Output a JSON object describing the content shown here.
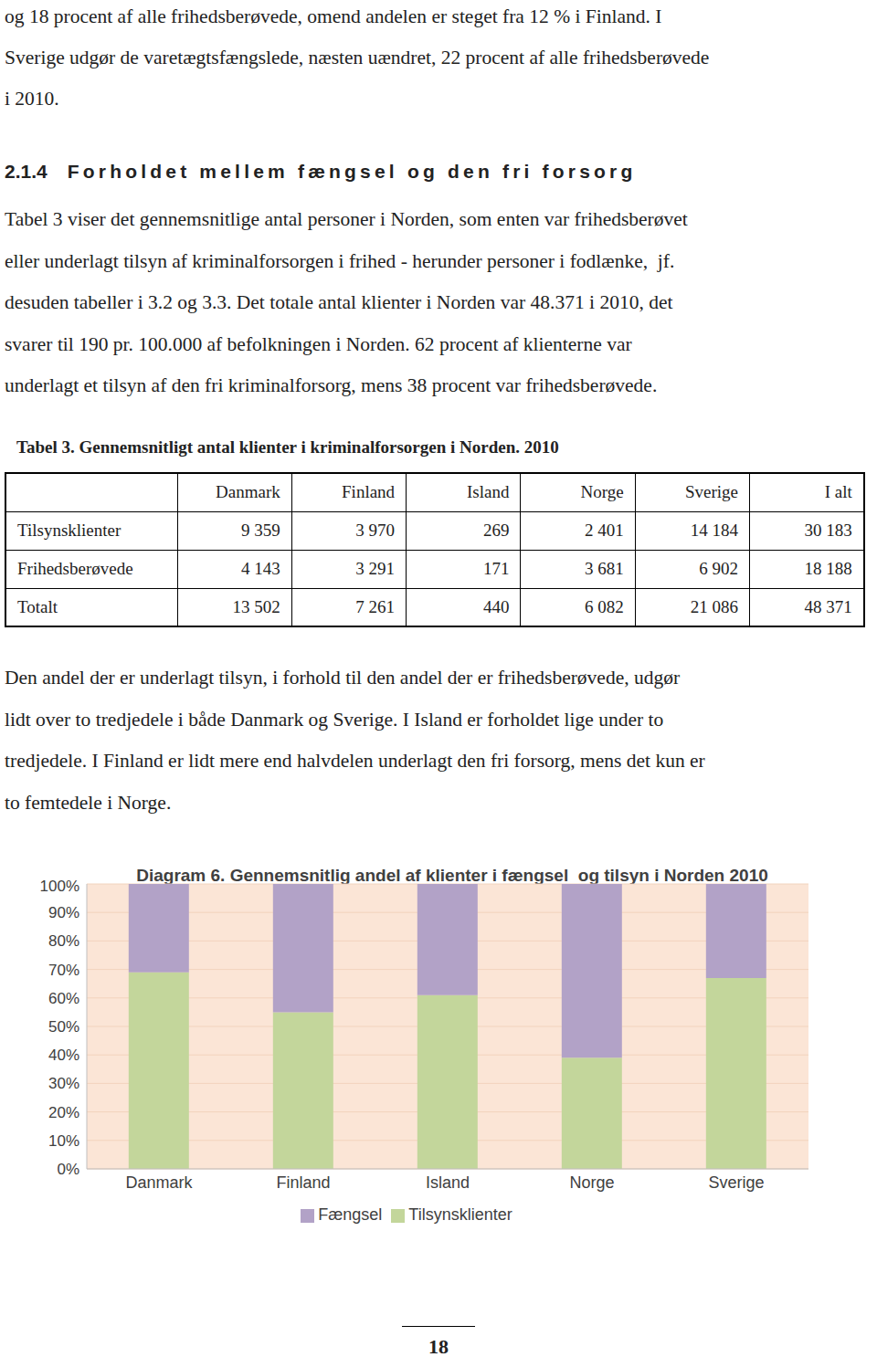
{
  "intro_lines": [
    "og 18 procent af alle frihedsberøvede, omend andelen er steget fra 12 % i Finland. I",
    "Sverige udgør de varetægtsfængslede, næsten uændret, 22 procent af alle frihedsberøvede",
    "i 2010."
  ],
  "heading": {
    "number": "2.1.4",
    "title": "Forholdet mellem fængsel og den fri forsorg"
  },
  "paragraph1_lines": [
    "Tabel 3 viser det gennemsnitlige antal personer i Norden, som enten var frihedsberøvet",
    "eller underlagt tilsyn af kriminalforsorgen i frihed - herunder personer i fodlænke,  jf.",
    "desuden tabeller i 3.2 og 3.3. Det totale antal klienter i Norden var 48.371 i 2010, det",
    "svarer til 190 pr. 100.000 af befolkningen i Norden. 62 procent af klienterne var",
    "underlagt et tilsyn af den fri kriminalforsorg, mens 38 procent var frihedsberøvede."
  ],
  "table": {
    "title": "Tabel 3. Gennemsnitligt antal klienter i kriminalforsorgen i Norden. 2010",
    "columns": [
      "Danmark",
      "Finland",
      "Island",
      "Norge",
      "Sverige",
      "I alt"
    ],
    "rows": [
      {
        "label": "Tilsynsklienter",
        "cells": [
          "9 359",
          "3 970",
          "269",
          "2 401",
          "14 184",
          "30 183"
        ]
      },
      {
        "label": "Frihedsberøvede",
        "cells": [
          "4 143",
          "3 291",
          "171",
          "3 681",
          "6 902",
          "18 188"
        ]
      },
      {
        "label": "Totalt",
        "cells": [
          "13 502",
          "7 261",
          "440",
          "6 082",
          "21 086",
          "48 371"
        ]
      }
    ]
  },
  "paragraph2_lines": [
    "Den andel der er underlagt tilsyn, i forhold til den andel der er frihedsberøvede, udgør",
    "lidt over to tredjedele i både Danmark og Sverige. I Island er forholdet lige under to",
    "tredjedele. I Finland er lidt mere end halvdelen underlagt den fri forsorg, mens det kun er",
    "to femtedele i Norge."
  ],
  "chart_data": {
    "type": "bar",
    "title": "Diagram 6. Gennemsnitlig andel af klienter i fængsel  og tilsyn i Norden 2010",
    "categories": [
      "Danmark",
      "Finland",
      "Island",
      "Norge",
      "Sverige"
    ],
    "series": [
      {
        "name": "Tilsynsklienter",
        "color": "#c3d69b",
        "values": [
          69,
          55,
          61,
          39,
          67
        ]
      },
      {
        "name": "Fængsel",
        "color": "#b2a2c7",
        "values": [
          31,
          45,
          39,
          61,
          33
        ]
      }
    ],
    "stacked": true,
    "ylim": [
      0,
      100
    ],
    "yticks": [
      {
        "value": 0,
        "label": "0%"
      },
      {
        "value": 10,
        "label": "10%"
      },
      {
        "value": 20,
        "label": "20%"
      },
      {
        "value": 30,
        "label": "30%"
      },
      {
        "value": 40,
        "label": "40%"
      },
      {
        "value": 50,
        "label": "50%"
      },
      {
        "value": 60,
        "label": "60%"
      },
      {
        "value": 70,
        "label": "70%"
      },
      {
        "value": 80,
        "label": "80%"
      },
      {
        "value": 90,
        "label": "90%"
      },
      {
        "value": 100,
        "label": "100%"
      }
    ],
    "grid": true,
    "legend": "bottom"
  },
  "page_number": "18"
}
